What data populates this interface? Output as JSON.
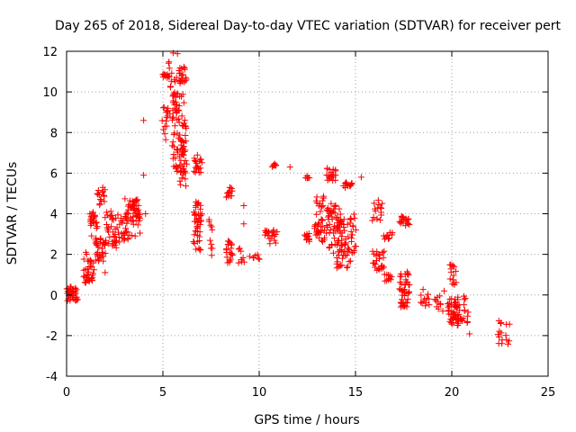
{
  "chart_data": {
    "type": "scatter",
    "title": "Day 265 of 2018, Sidereal Day-to-day VTEC variation (SDTVAR) for receiver pert",
    "xlabel": "GPS time / hours",
    "ylabel": "SDTVAR / TECUs",
    "xlim": [
      0,
      25
    ],
    "ylim": [
      -4,
      12
    ],
    "xticks": [
      "0",
      "5",
      "10",
      "15",
      "20",
      "25"
    ],
    "yticks": [
      "-4",
      "-2",
      "0",
      "2",
      "4",
      "6",
      "8",
      "10",
      "12"
    ],
    "grid": true,
    "marker": "+",
    "color": "#ff0000",
    "clusters": [
      {
        "x0": 0.05,
        "x1": 0.55,
        "y0": -0.3,
        "y1": 0.4,
        "n": 40
      },
      {
        "x0": 0.9,
        "x1": 1.4,
        "y0": 0.6,
        "y1": 2.0,
        "n": 35
      },
      {
        "x0": 1.2,
        "x1": 1.6,
        "y0": 2.5,
        "y1": 4.1,
        "n": 25
      },
      {
        "x0": 1.5,
        "x1": 2.0,
        "y0": 1.6,
        "y1": 2.9,
        "n": 30
      },
      {
        "x0": 1.6,
        "x1": 2.0,
        "y0": 4.4,
        "y1": 5.3,
        "n": 15
      },
      {
        "x0": 2.0,
        "x1": 2.6,
        "y0": 2.3,
        "y1": 4.2,
        "n": 30
      },
      {
        "x0": 2.5,
        "x1": 3.2,
        "y0": 2.5,
        "y1": 4.0,
        "n": 25
      },
      {
        "x0": 3.0,
        "x1": 3.8,
        "y0": 2.7,
        "y1": 4.8,
        "n": 40
      },
      {
        "x0": 3.4,
        "x1": 3.8,
        "y0": 3.5,
        "y1": 4.7,
        "n": 20
      },
      {
        "x0": 5.0,
        "x1": 5.3,
        "y0": 7.6,
        "y1": 9.3,
        "n": 15
      },
      {
        "x0": 5.0,
        "x1": 5.3,
        "y0": 10.6,
        "y1": 10.9,
        "n": 12
      },
      {
        "x0": 5.3,
        "x1": 5.8,
        "y0": 8.4,
        "y1": 12.0,
        "n": 25
      },
      {
        "x0": 5.5,
        "x1": 6.2,
        "y0": 6.0,
        "y1": 10.0,
        "n": 70
      },
      {
        "x0": 5.8,
        "x1": 6.2,
        "y0": 10.2,
        "y1": 11.3,
        "n": 20
      },
      {
        "x0": 5.9,
        "x1": 6.2,
        "y0": 5.3,
        "y1": 7.3,
        "n": 20
      },
      {
        "x0": 6.6,
        "x1": 7.0,
        "y0": 6.0,
        "y1": 7.2,
        "n": 20
      },
      {
        "x0": 6.6,
        "x1": 7.0,
        "y0": 2.2,
        "y1": 4.6,
        "n": 45
      },
      {
        "x0": 7.4,
        "x1": 7.6,
        "y0": 1.8,
        "y1": 4.0,
        "n": 10
      },
      {
        "x0": 8.3,
        "x1": 8.6,
        "y0": 4.8,
        "y1": 5.3,
        "n": 12
      },
      {
        "x0": 8.3,
        "x1": 8.6,
        "y0": 1.5,
        "y1": 2.8,
        "n": 20
      },
      {
        "x0": 8.9,
        "x1": 9.2,
        "y0": 1.4,
        "y1": 2.3,
        "n": 8
      },
      {
        "x0": 9.7,
        "x1": 10.0,
        "y0": 1.4,
        "y1": 2.0,
        "n": 6
      },
      {
        "x0": 10.3,
        "x1": 10.9,
        "y0": 2.5,
        "y1": 3.2,
        "n": 20
      },
      {
        "x0": 10.7,
        "x1": 10.9,
        "y0": 6.3,
        "y1": 6.5,
        "n": 8
      },
      {
        "x0": 12.4,
        "x1": 12.6,
        "y0": 5.7,
        "y1": 5.9,
        "n": 6
      },
      {
        "x0": 12.4,
        "x1": 12.6,
        "y0": 2.5,
        "y1": 3.2,
        "n": 12
      },
      {
        "x0": 12.9,
        "x1": 13.4,
        "y0": 2.5,
        "y1": 4.9,
        "n": 40
      },
      {
        "x0": 13.5,
        "x1": 14.0,
        "y0": 5.6,
        "y1": 6.3,
        "n": 20
      },
      {
        "x0": 13.5,
        "x1": 14.3,
        "y0": 2.0,
        "y1": 4.5,
        "n": 60
      },
      {
        "x0": 14.0,
        "x1": 14.8,
        "y0": 1.3,
        "y1": 3.8,
        "n": 50
      },
      {
        "x0": 14.4,
        "x1": 14.8,
        "y0": 5.2,
        "y1": 5.6,
        "n": 12
      },
      {
        "x0": 14.8,
        "x1": 15.0,
        "y0": 2.0,
        "y1": 4.5,
        "n": 12
      },
      {
        "x0": 15.9,
        "x1": 16.4,
        "y0": 3.5,
        "y1": 4.8,
        "n": 15
      },
      {
        "x0": 15.9,
        "x1": 16.5,
        "y0": 1.2,
        "y1": 2.2,
        "n": 25
      },
      {
        "x0": 16.5,
        "x1": 16.9,
        "y0": 2.7,
        "y1": 3.1,
        "n": 10
      },
      {
        "x0": 16.5,
        "x1": 16.9,
        "y0": 0.6,
        "y1": 1.1,
        "n": 10
      },
      {
        "x0": 17.3,
        "x1": 17.8,
        "y0": 3.4,
        "y1": 3.9,
        "n": 20
      },
      {
        "x0": 17.3,
        "x1": 17.8,
        "y0": -0.6,
        "y1": 1.2,
        "n": 45
      },
      {
        "x0": 18.4,
        "x1": 18.8,
        "y0": -0.6,
        "y1": 0.4,
        "n": 12
      },
      {
        "x0": 19.1,
        "x1": 19.5,
        "y0": -1.1,
        "y1": 0.0,
        "n": 10
      },
      {
        "x0": 19.9,
        "x1": 20.2,
        "y0": 0.5,
        "y1": 1.5,
        "n": 15
      },
      {
        "x0": 19.8,
        "x1": 20.4,
        "y0": -1.5,
        "y1": -0.1,
        "n": 45
      },
      {
        "x0": 20.2,
        "x1": 20.6,
        "y0": -1.5,
        "y1": -0.4,
        "n": 15
      },
      {
        "x0": 20.6,
        "x1": 20.9,
        "y0": -2.0,
        "y1": 0.1,
        "n": 10
      },
      {
        "x0": 22.4,
        "x1": 22.6,
        "y0": -2.5,
        "y1": -1.0,
        "n": 10
      },
      {
        "x0": 22.8,
        "x1": 23.0,
        "y0": -2.6,
        "y1": -1.4,
        "n": 6
      }
    ],
    "outliers": [
      [
        4.0,
        8.6
      ],
      [
        4.0,
        5.9
      ],
      [
        4.1,
        4.0
      ],
      [
        1.0,
        2.1
      ],
      [
        2.0,
        1.1
      ],
      [
        9.2,
        4.4
      ],
      [
        9.2,
        3.5
      ],
      [
        9.5,
        1.9
      ],
      [
        11.6,
        6.3
      ],
      [
        15.3,
        5.8
      ],
      [
        16.3,
        4.3
      ],
      [
        18.8,
        -0.2
      ],
      [
        19.6,
        0.2
      ]
    ]
  }
}
